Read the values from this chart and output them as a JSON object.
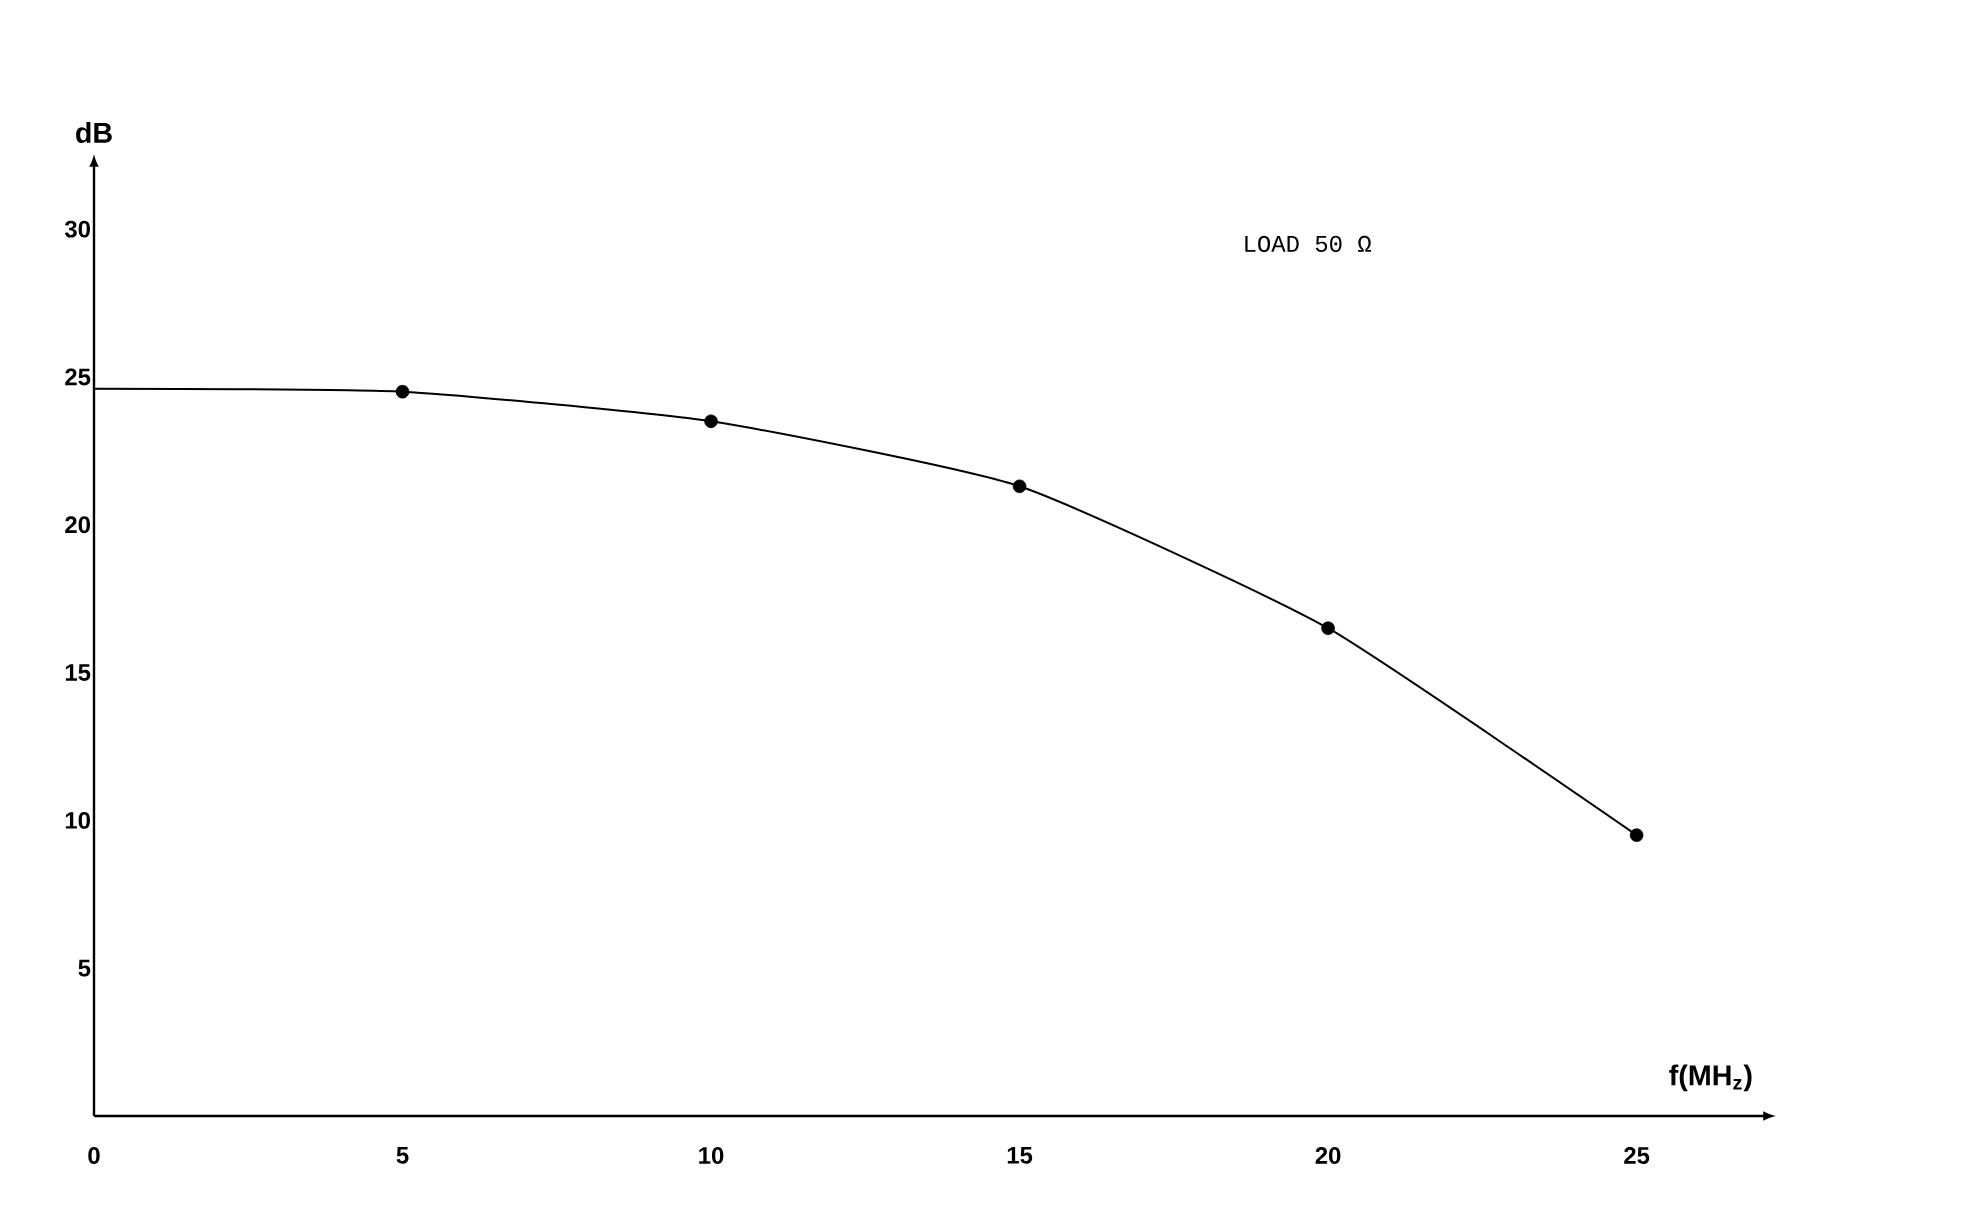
{
  "chart_data": {
    "type": "line",
    "xlabel": "f(MH$_{z}$)",
    "ylabel": "dB",
    "annotations": [
      "LOAD 50 Ω"
    ],
    "xlim": [
      0,
      27
    ],
    "ylim": [
      0,
      32
    ],
    "xticks": [
      0,
      5,
      10,
      15,
      20,
      25
    ],
    "yticks": [
      5,
      10,
      15,
      20,
      25,
      30
    ],
    "grid": false,
    "series": [
      {
        "type": "line",
        "marker": "none",
        "color": "#000000",
        "x": [
          0,
          5,
          10,
          15,
          20,
          25
        ],
        "values": [
          24.6,
          24.5,
          23.5,
          21.3,
          16.5,
          9.5
        ]
      },
      {
        "type": "scatter",
        "marker": "circle",
        "color": "#000000",
        "x": [
          5,
          10,
          15,
          20,
          25
        ],
        "values": [
          24.5,
          23.5,
          21.3,
          16.5,
          9.5
        ]
      }
    ]
  }
}
